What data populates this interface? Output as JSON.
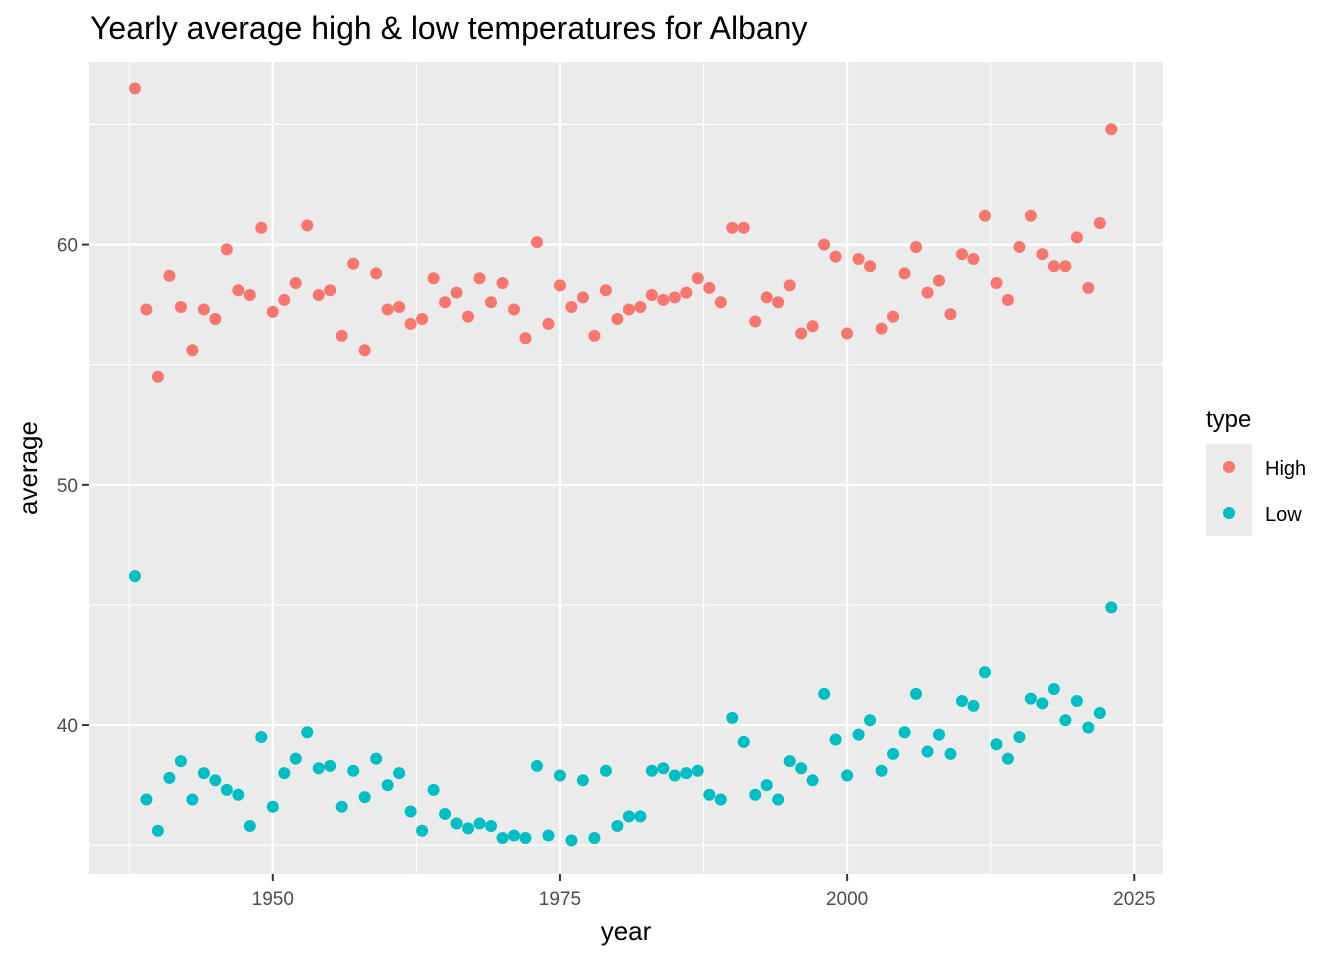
{
  "chart_data": {
    "type": "scatter",
    "title": "Yearly average high & low temperatures for Albany",
    "xlabel": "year",
    "ylabel": "average",
    "xlim": [
      1934,
      2027.5
    ],
    "ylim": [
      33.8,
      67.6
    ],
    "x_ticks": [
      1950,
      1975,
      2000,
      2025
    ],
    "y_ticks": [
      40,
      50,
      60
    ],
    "grid": true,
    "legend": {
      "title": "type",
      "position": "right"
    },
    "series": [
      {
        "name": "High",
        "color": "#F8766D",
        "x": [
          1938,
          1939,
          1940,
          1941,
          1942,
          1943,
          1944,
          1945,
          1946,
          1947,
          1948,
          1949,
          1950,
          1951,
          1952,
          1953,
          1954,
          1955,
          1956,
          1957,
          1958,
          1959,
          1960,
          1961,
          1962,
          1963,
          1964,
          1965,
          1966,
          1967,
          1968,
          1969,
          1970,
          1971,
          1972,
          1973,
          1974,
          1975,
          1976,
          1977,
          1978,
          1979,
          1980,
          1981,
          1982,
          1983,
          1984,
          1985,
          1986,
          1987,
          1988,
          1989,
          1990,
          1991,
          1992,
          1993,
          1994,
          1995,
          1996,
          1997,
          1998,
          1999,
          2000,
          2001,
          2002,
          2003,
          2004,
          2005,
          2006,
          2007,
          2008,
          2009,
          2010,
          2011,
          2012,
          2013,
          2014,
          2015,
          2016,
          2017,
          2018,
          2019,
          2020,
          2021,
          2022,
          2023
        ],
        "y": [
          66.5,
          57.3,
          54.5,
          58.7,
          57.4,
          55.6,
          57.3,
          56.9,
          59.8,
          58.1,
          57.9,
          60.7,
          57.2,
          57.7,
          58.4,
          60.8,
          57.9,
          58.1,
          56.2,
          59.2,
          55.6,
          58.8,
          57.3,
          57.4,
          56.7,
          56.9,
          58.6,
          57.6,
          58.0,
          57.0,
          58.6,
          57.6,
          58.4,
          57.3,
          56.1,
          60.1,
          56.7,
          58.3,
          57.4,
          57.8,
          56.2,
          58.1,
          56.9,
          57.3,
          57.4,
          57.9,
          57.7,
          57.8,
          58.0,
          58.6,
          58.2,
          57.6,
          60.7,
          60.7,
          56.8,
          57.8,
          57.6,
          58.3,
          56.3,
          56.6,
          60.0,
          59.5,
          56.3,
          59.4,
          59.1,
          56.5,
          57.0,
          58.8,
          59.9,
          58.0,
          58.5,
          57.1,
          59.6,
          59.4,
          61.2,
          58.4,
          57.7,
          59.9,
          61.2,
          59.6,
          59.1,
          59.1,
          60.3,
          58.2,
          60.9,
          64.8
        ]
      },
      {
        "name": "Low",
        "color": "#00BFC4",
        "x": [
          1938,
          1939,
          1940,
          1941,
          1942,
          1943,
          1944,
          1945,
          1946,
          1947,
          1948,
          1949,
          1950,
          1951,
          1952,
          1953,
          1954,
          1955,
          1956,
          1957,
          1958,
          1959,
          1960,
          1961,
          1962,
          1963,
          1964,
          1965,
          1966,
          1967,
          1968,
          1969,
          1970,
          1971,
          1972,
          1973,
          1974,
          1975,
          1976,
          1977,
          1978,
          1979,
          1980,
          1981,
          1982,
          1983,
          1984,
          1985,
          1986,
          1987,
          1988,
          1989,
          1990,
          1991,
          1992,
          1993,
          1994,
          1995,
          1996,
          1997,
          1998,
          1999,
          2000,
          2001,
          2002,
          2003,
          2004,
          2005,
          2006,
          2007,
          2008,
          2009,
          2010,
          2011,
          2012,
          2013,
          2014,
          2015,
          2016,
          2017,
          2018,
          2019,
          2020,
          2021,
          2022,
          2023
        ],
        "y": [
          46.2,
          36.9,
          35.6,
          37.8,
          38.5,
          36.9,
          38.0,
          37.7,
          37.3,
          37.1,
          35.8,
          39.5,
          36.6,
          38.0,
          38.6,
          39.7,
          38.2,
          38.3,
          36.6,
          38.1,
          37.0,
          38.6,
          37.5,
          38.0,
          36.4,
          35.6,
          37.3,
          36.3,
          35.9,
          35.7,
          35.9,
          35.8,
          35.3,
          35.4,
          35.3,
          38.3,
          35.4,
          37.9,
          35.2,
          37.7,
          35.3,
          38.1,
          35.8,
          36.2,
          36.2,
          38.1,
          38.2,
          37.9,
          38.0,
          38.1,
          37.1,
          36.9,
          40.3,
          39.3,
          37.1,
          37.5,
          36.9,
          38.5,
          38.2,
          37.7,
          41.3,
          39.4,
          37.9,
          39.6,
          40.2,
          38.1,
          38.8,
          39.7,
          41.3,
          38.9,
          39.6,
          38.8,
          41.0,
          40.8,
          42.2,
          39.2,
          38.6,
          39.5,
          41.1,
          40.9,
          41.5,
          40.2,
          41.0,
          39.9,
          40.5,
          44.9
        ]
      }
    ]
  }
}
